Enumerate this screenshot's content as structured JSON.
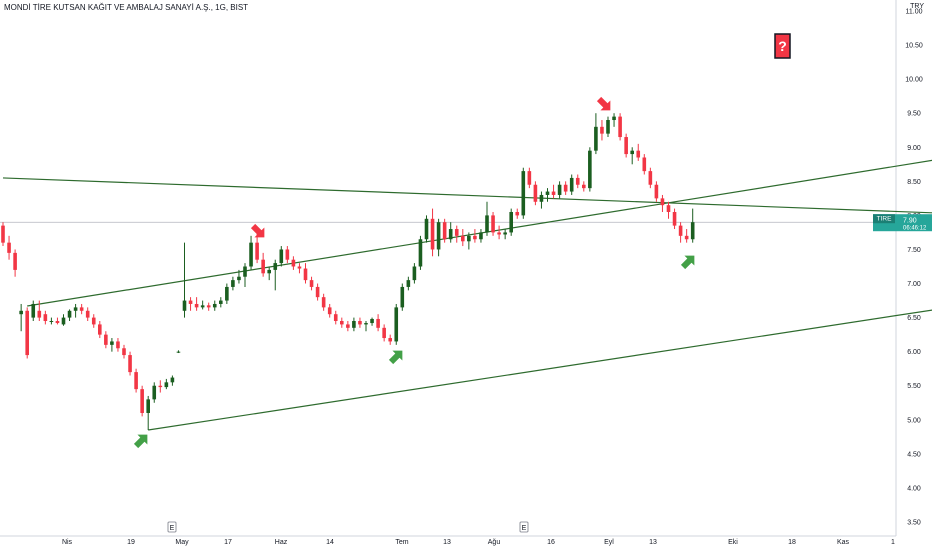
{
  "header": {
    "title": "MONDİ TİRE KUTSAN KAĞIT VE AMBALAJ SANAYİ A.Ş., 1G, BIST",
    "currency": "TRY"
  },
  "price_tag": {
    "symbol": "TIRE",
    "price": "7.90",
    "countdown": "06:46:12",
    "color": "#26a69a"
  },
  "colors": {
    "up": "#1b5e20",
    "down": "#f23645",
    "trendline": "#2e6b2e",
    "up_arrow": "#43a047",
    "down_arrow": "#f23645",
    "question_box": "#f23645"
  },
  "chart_data": {
    "type": "candlestick",
    "ylim": [
      3.5,
      11.0
    ],
    "y_ticks": [
      "3.50",
      "4.00",
      "4.50",
      "5.00",
      "5.50",
      "6.00",
      "6.50",
      "7.00",
      "7.50",
      "8.00",
      "8.50",
      "9.00",
      "9.50",
      "10.00",
      "10.50",
      "11.00"
    ],
    "x_ticks": [
      "Nis",
      "19",
      "May",
      "17",
      "Haz",
      "14",
      "Tem",
      "13",
      "Ağu",
      "16",
      "Eyl",
      "13",
      "Eki",
      "18",
      "Kas",
      "1"
    ],
    "event_markers": [
      "E",
      "E"
    ],
    "annotations": {
      "question": "?"
    },
    "candles": [
      [
        7.85,
        7.9,
        7.55,
        7.6
      ],
      [
        7.6,
        7.7,
        7.35,
        7.45
      ],
      [
        7.45,
        7.5,
        7.1,
        7.2
      ],
      [
        6.55,
        6.7,
        6.3,
        6.6
      ],
      [
        6.6,
        6.65,
        5.9,
        5.95
      ],
      [
        6.5,
        6.75,
        6.45,
        6.7
      ],
      [
        6.6,
        6.75,
        6.45,
        6.5
      ],
      [
        6.55,
        6.6,
        6.4,
        6.45
      ],
      [
        6.45,
        6.5,
        6.4,
        6.45
      ],
      [
        6.45,
        6.5,
        6.4,
        6.42
      ],
      [
        6.4,
        6.55,
        6.38,
        6.5
      ],
      [
        6.5,
        6.62,
        6.45,
        6.6
      ],
      [
        6.6,
        6.7,
        6.5,
        6.65
      ],
      [
        6.65,
        6.7,
        6.55,
        6.6
      ],
      [
        6.6,
        6.65,
        6.45,
        6.5
      ],
      [
        6.5,
        6.55,
        6.35,
        6.4
      ],
      [
        6.4,
        6.45,
        6.2,
        6.25
      ],
      [
        6.25,
        6.3,
        6.05,
        6.1
      ],
      [
        6.1,
        6.2,
        6.0,
        6.15
      ],
      [
        6.15,
        6.2,
        6.0,
        6.05
      ],
      [
        6.05,
        6.1,
        5.9,
        5.95
      ],
      [
        5.95,
        6.0,
        5.65,
        5.7
      ],
      [
        5.7,
        5.75,
        5.4,
        5.45
      ],
      [
        5.45,
        5.5,
        5.05,
        5.1
      ],
      [
        5.1,
        5.35,
        4.85,
        5.3
      ],
      [
        5.3,
        5.55,
        5.25,
        5.5
      ],
      [
        5.5,
        5.58,
        5.4,
        5.48
      ],
      [
        5.48,
        5.6,
        5.45,
        5.55
      ],
      [
        5.55,
        5.65,
        5.5,
        5.62
      ],
      [
        6.0,
        6.02,
        5.98,
        6.0
      ],
      [
        6.6,
        7.6,
        6.5,
        6.75
      ],
      [
        6.75,
        6.8,
        6.6,
        6.7
      ],
      [
        6.7,
        6.8,
        6.6,
        6.65
      ],
      [
        6.65,
        6.75,
        6.62,
        6.68
      ],
      [
        6.68,
        6.72,
        6.6,
        6.65
      ],
      [
        6.65,
        6.75,
        6.6,
        6.7
      ],
      [
        6.7,
        6.8,
        6.65,
        6.75
      ],
      [
        6.75,
        7.0,
        6.7,
        6.95
      ],
      [
        6.95,
        7.1,
        6.9,
        7.05
      ],
      [
        7.05,
        7.2,
        7.0,
        7.1
      ],
      [
        7.1,
        7.3,
        6.95,
        7.25
      ],
      [
        7.25,
        7.7,
        7.2,
        7.6
      ],
      [
        7.6,
        7.75,
        7.3,
        7.35
      ],
      [
        7.35,
        7.45,
        7.1,
        7.15
      ],
      [
        7.15,
        7.25,
        7.05,
        7.2
      ],
      [
        7.2,
        7.35,
        6.9,
        7.3
      ],
      [
        7.3,
        7.55,
        7.25,
        7.5
      ],
      [
        7.5,
        7.55,
        7.3,
        7.35
      ],
      [
        7.35,
        7.4,
        7.2,
        7.25
      ],
      [
        7.25,
        7.3,
        7.15,
        7.22
      ],
      [
        7.22,
        7.3,
        7.0,
        7.05
      ],
      [
        7.05,
        7.1,
        6.9,
        6.95
      ],
      [
        6.95,
        7.0,
        6.75,
        6.8
      ],
      [
        6.8,
        6.85,
        6.6,
        6.65
      ],
      [
        6.65,
        6.7,
        6.5,
        6.55
      ],
      [
        6.55,
        6.6,
        6.4,
        6.45
      ],
      [
        6.45,
        6.5,
        6.35,
        6.4
      ],
      [
        6.4,
        6.45,
        6.3,
        6.35
      ],
      [
        6.35,
        6.5,
        6.3,
        6.45
      ],
      [
        6.45,
        6.5,
        6.35,
        6.4
      ],
      [
        6.4,
        6.45,
        6.3,
        6.42
      ],
      [
        6.42,
        6.5,
        6.38,
        6.48
      ],
      [
        6.48,
        6.55,
        6.3,
        6.35
      ],
      [
        6.35,
        6.4,
        6.15,
        6.2
      ],
      [
        6.2,
        6.25,
        6.1,
        6.15
      ],
      [
        6.15,
        6.7,
        6.1,
        6.65
      ],
      [
        6.65,
        7.0,
        6.6,
        6.95
      ],
      [
        6.95,
        7.1,
        6.9,
        7.05
      ],
      [
        7.05,
        7.3,
        7.0,
        7.25
      ],
      [
        7.25,
        7.7,
        7.2,
        7.65
      ],
      [
        7.65,
        8.0,
        7.6,
        7.95
      ],
      [
        7.95,
        8.1,
        7.4,
        7.5
      ],
      [
        7.5,
        7.95,
        7.4,
        7.9
      ],
      [
        7.9,
        7.95,
        7.6,
        7.65
      ],
      [
        7.65,
        7.9,
        7.6,
        7.8
      ],
      [
        7.8,
        7.85,
        7.6,
        7.7
      ],
      [
        7.7,
        7.8,
        7.55,
        7.62
      ],
      [
        7.62,
        7.75,
        7.5,
        7.7
      ],
      [
        7.7,
        7.8,
        7.6,
        7.65
      ],
      [
        7.65,
        7.8,
        7.6,
        7.75
      ],
      [
        7.75,
        8.2,
        7.7,
        8.0
      ],
      [
        8.0,
        8.05,
        7.7,
        7.75
      ],
      [
        7.75,
        7.85,
        7.65,
        7.72
      ],
      [
        7.72,
        7.8,
        7.65,
        7.75
      ],
      [
        7.75,
        8.1,
        7.7,
        8.05
      ],
      [
        8.05,
        8.1,
        7.95,
        8.0
      ],
      [
        8.0,
        8.7,
        7.95,
        8.65
      ],
      [
        8.65,
        8.7,
        8.4,
        8.45
      ],
      [
        8.45,
        8.5,
        8.15,
        8.2
      ],
      [
        8.2,
        8.35,
        8.1,
        8.3
      ],
      [
        8.3,
        8.4,
        8.2,
        8.35
      ],
      [
        8.35,
        8.45,
        8.25,
        8.3
      ],
      [
        8.3,
        8.5,
        8.25,
        8.45
      ],
      [
        8.45,
        8.5,
        8.3,
        8.35
      ],
      [
        8.35,
        8.6,
        8.3,
        8.55
      ],
      [
        8.55,
        8.6,
        8.4,
        8.45
      ],
      [
        8.45,
        8.5,
        8.35,
        8.4
      ],
      [
        8.4,
        9.0,
        8.35,
        8.95
      ],
      [
        8.95,
        9.5,
        8.9,
        9.3
      ],
      [
        9.3,
        9.4,
        9.1,
        9.2
      ],
      [
        9.2,
        9.45,
        9.15,
        9.4
      ],
      [
        9.4,
        9.5,
        9.3,
        9.45
      ],
      [
        9.45,
        9.5,
        9.1,
        9.15
      ],
      [
        9.15,
        9.2,
        8.85,
        8.9
      ],
      [
        8.9,
        9.0,
        8.75,
        8.95
      ],
      [
        8.95,
        9.05,
        8.8,
        8.85
      ],
      [
        8.85,
        8.9,
        8.6,
        8.65
      ],
      [
        8.65,
        8.7,
        8.4,
        8.45
      ],
      [
        8.45,
        8.5,
        8.2,
        8.25
      ],
      [
        8.25,
        8.3,
        8.05,
        8.15
      ],
      [
        8.15,
        8.2,
        7.95,
        8.05
      ],
      [
        8.05,
        8.1,
        7.8,
        7.85
      ],
      [
        7.85,
        7.9,
        7.6,
        7.7
      ],
      [
        7.7,
        7.8,
        7.6,
        7.65
      ],
      [
        7.65,
        8.1,
        7.6,
        7.9
      ]
    ],
    "trendlines": [
      {
        "points": [
          [
            4,
            6.67
          ],
          [
            300,
            10.9
          ]
        ]
      },
      {
        "points": [
          [
            24,
            4.85
          ],
          [
            300,
            8.6
          ]
        ]
      },
      {
        "points": [
          [
            0,
            8.55
          ],
          [
            300,
            7.55
          ]
        ]
      }
    ]
  }
}
